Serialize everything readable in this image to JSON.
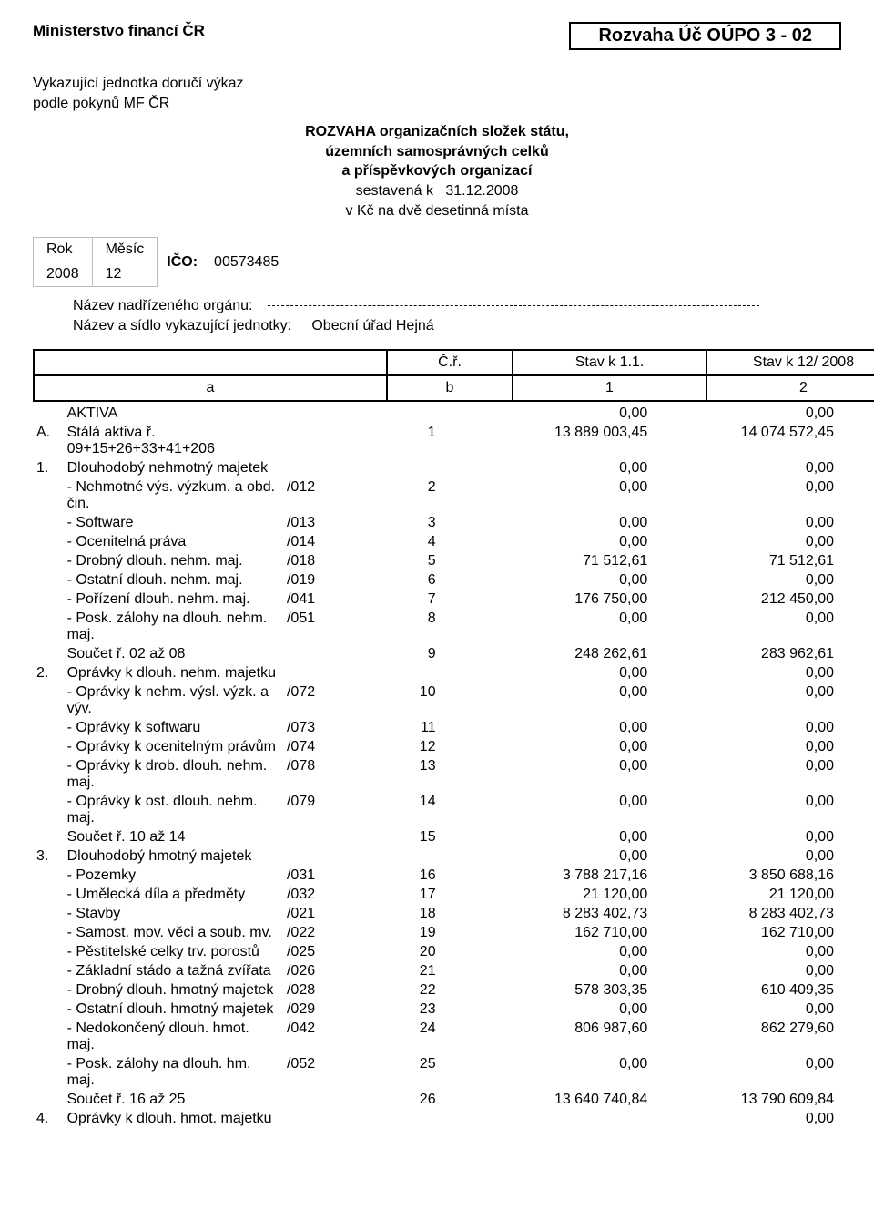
{
  "header": {
    "ministry": "Ministerstvo financí ČR",
    "doc_title": "Rozvaha Úč OÚPO 3 - 02",
    "reporter_line1": "Vykazující jednotka doručí výkaz",
    "reporter_line2": "podle pokynů MF ČR",
    "center_bold1": "ROZVAHA organizačních složek státu,",
    "center_bold2": "územních samosprávných celků",
    "center_bold3": "a příspěvkových organizací",
    "compiled_label": "sestavená k",
    "compiled_date": "31.12.2008",
    "currency_note": "v Kč na dvě desetinná místa"
  },
  "meta": {
    "rok_label": "Rok",
    "mesic_label": "Měsíc",
    "rok": "2008",
    "mesic": "12",
    "ico_label": "IČO:",
    "ico": "00573485",
    "superior_label": "Název nadřízeného orgánu:",
    "unit_label": "Název a sídlo vykazující jednotky:",
    "unit_value": "Obecní úřad Hejná"
  },
  "header_row": {
    "cr": "Č.ř.",
    "s1": "Stav k 1.1.",
    "s2": "Stav k 12/ 2008",
    "a": "a",
    "b": "b",
    "one": "1",
    "two": "2"
  },
  "rows": [
    {
      "n": "",
      "label": "AKTIVA",
      "code": "",
      "b": "",
      "v1": "0,00",
      "v2": "0,00"
    },
    {
      "n": "A.",
      "label": "Stálá aktiva ř. 09+15+26+33+41+206",
      "code": "",
      "b": "1",
      "v1": "13 889 003,45",
      "v2": "14 074 572,45"
    },
    {
      "n": "1.",
      "label": "Dlouhodobý nehmotný majetek",
      "code": "",
      "b": "",
      "v1": "0,00",
      "v2": "0,00"
    },
    {
      "n": "",
      "label": "- Nehmotné výs. výzkum. a obd. čin.",
      "code": "/012",
      "b": "2",
      "v1": "0,00",
      "v2": "0,00"
    },
    {
      "n": "",
      "label": "- Software",
      "code": "/013",
      "b": "3",
      "v1": "0,00",
      "v2": "0,00"
    },
    {
      "n": "",
      "label": "- Ocenitelná práva",
      "code": "/014",
      "b": "4",
      "v1": "0,00",
      "v2": "0,00"
    },
    {
      "n": "",
      "label": "- Drobný dlouh. nehm. maj.",
      "code": "/018",
      "b": "5",
      "v1": "71 512,61",
      "v2": "71 512,61"
    },
    {
      "n": "",
      "label": "- Ostatní dlouh. nehm. maj.",
      "code": "/019",
      "b": "6",
      "v1": "0,00",
      "v2": "0,00"
    },
    {
      "n": "",
      "label": "- Pořízení dlouh. nehm. maj.",
      "code": "/041",
      "b": "7",
      "v1": "176 750,00",
      "v2": "212 450,00"
    },
    {
      "n": "",
      "label": "- Posk. zálohy na dlouh. nehm. maj.",
      "code": "/051",
      "b": "8",
      "v1": "0,00",
      "v2": "0,00"
    },
    {
      "n": "",
      "label": "Součet ř. 02 až 08",
      "code": "",
      "b": "9",
      "v1": "248 262,61",
      "v2": "283 962,61"
    },
    {
      "n": "2.",
      "label": "Oprávky k dlouh. nehm. majetku",
      "code": "",
      "b": "",
      "v1": "0,00",
      "v2": "0,00"
    },
    {
      "n": "",
      "label": "- Oprávky k nehm. výsl. výzk. a výv.",
      "code": "/072",
      "b": "10",
      "v1": "0,00",
      "v2": "0,00"
    },
    {
      "n": "",
      "label": "- Oprávky k softwaru",
      "code": "/073",
      "b": "11",
      "v1": "0,00",
      "v2": "0,00"
    },
    {
      "n": "",
      "label": "- Oprávky k ocenitelným právům",
      "code": "/074",
      "b": "12",
      "v1": "0,00",
      "v2": "0,00"
    },
    {
      "n": "",
      "label": "- Oprávky k drob. dlouh. nehm. maj.",
      "code": "/078",
      "b": "13",
      "v1": "0,00",
      "v2": "0,00"
    },
    {
      "n": "",
      "label": "- Oprávky k ost. dlouh. nehm. maj.",
      "code": "/079",
      "b": "14",
      "v1": "0,00",
      "v2": "0,00"
    },
    {
      "n": "",
      "label": "Součet ř. 10 až 14",
      "code": "",
      "b": "15",
      "v1": "0,00",
      "v2": "0,00"
    },
    {
      "n": "3.",
      "label": "Dlouhodobý hmotný majetek",
      "code": "",
      "b": "",
      "v1": "0,00",
      "v2": "0,00"
    },
    {
      "n": "",
      "label": "- Pozemky",
      "code": "/031",
      "b": "16",
      "v1": "3 788 217,16",
      "v2": "3 850 688,16"
    },
    {
      "n": "",
      "label": "- Umělecká díla a předměty",
      "code": "/032",
      "b": "17",
      "v1": "21 120,00",
      "v2": "21 120,00"
    },
    {
      "n": "",
      "label": "- Stavby",
      "code": "/021",
      "b": "18",
      "v1": "8 283 402,73",
      "v2": "8 283 402,73"
    },
    {
      "n": "",
      "label": "- Samost. mov. věci a soub. mv.",
      "code": "/022",
      "b": "19",
      "v1": "162 710,00",
      "v2": "162 710,00"
    },
    {
      "n": "",
      "label": "- Pěstitelské celky trv. porostů",
      "code": "/025",
      "b": "20",
      "v1": "0,00",
      "v2": "0,00"
    },
    {
      "n": "",
      "label": "- Základní stádo a tažná zvířata",
      "code": "/026",
      "b": "21",
      "v1": "0,00",
      "v2": "0,00"
    },
    {
      "n": "",
      "label": "- Drobný dlouh. hmotný majetek",
      "code": "/028",
      "b": "22",
      "v1": "578 303,35",
      "v2": "610 409,35"
    },
    {
      "n": "",
      "label": "- Ostatní dlouh. hmotný majetek",
      "code": "/029",
      "b": "23",
      "v1": "0,00",
      "v2": "0,00"
    },
    {
      "n": "",
      "label": "- Nedokončený dlouh. hmot. maj.",
      "code": "/042",
      "b": "24",
      "v1": "806 987,60",
      "v2": "862 279,60"
    },
    {
      "n": "",
      "label": "- Posk. zálohy na dlouh. hm. maj.",
      "code": "/052",
      "b": "25",
      "v1": "0,00",
      "v2": "0,00"
    },
    {
      "n": "",
      "label": "Součet ř. 16 až 25",
      "code": "",
      "b": "26",
      "v1": "13 640 740,84",
      "v2": "13 790 609,84"
    },
    {
      "n": "4.",
      "label": "Oprávky k dlouh. hmot. majetku",
      "code": "",
      "b": "",
      "v1": "",
      "v2": "0,00"
    }
  ]
}
